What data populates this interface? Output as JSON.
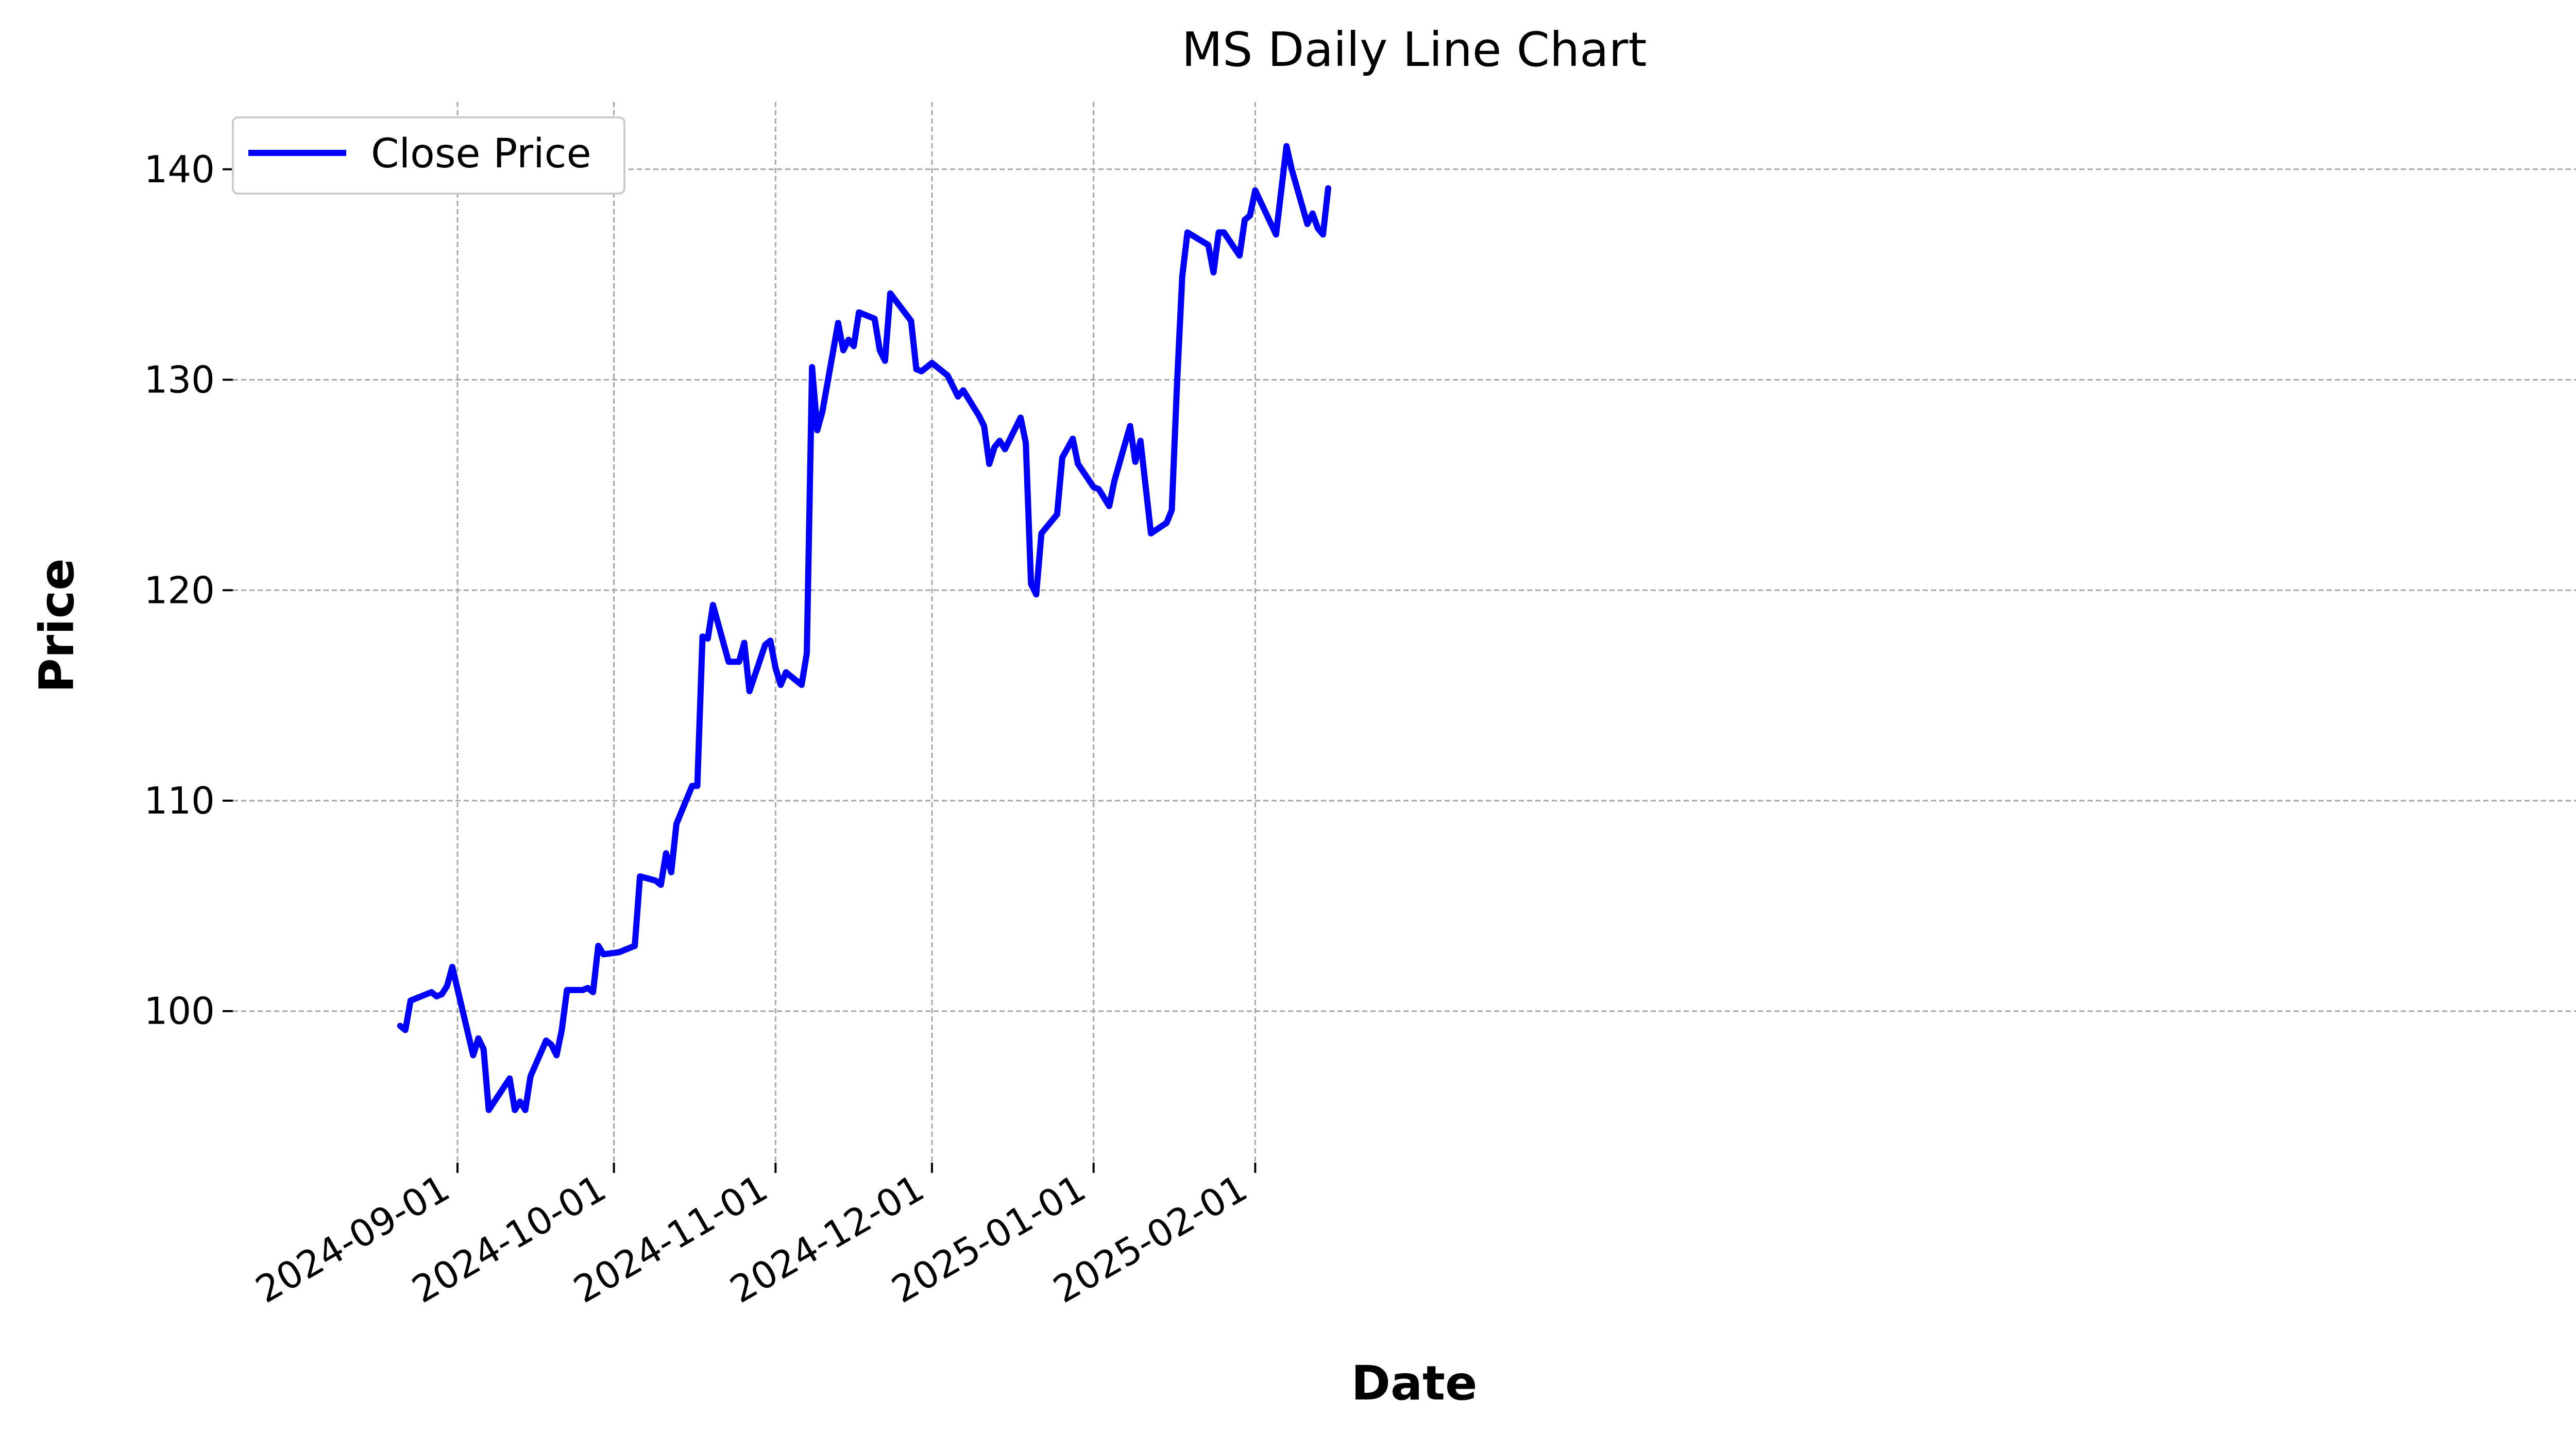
{
  "chart_data": {
    "type": "line",
    "title": "MS Daily Line Chart",
    "xlabel": "Date",
    "ylabel": "Price",
    "x_ticks": [
      "2024-09-01",
      "2024-10-01",
      "2024-11-01",
      "2024-12-01",
      "2025-01-01",
      "2025-02-01"
    ],
    "y_ticks": [
      100,
      110,
      120,
      130,
      140
    ],
    "xlim": [
      "2024-08-22",
      "2025-02-22"
    ],
    "ylim": [
      92.8,
      143.2
    ],
    "grid": true,
    "legend_position": "top-left",
    "series": [
      {
        "name": "Close Price",
        "color": "#0000ff",
        "points": [
          [
            "2024-08-21",
            99.3
          ],
          [
            "2024-08-22",
            99.1
          ],
          [
            "2024-08-23",
            100.5
          ],
          [
            "2024-08-26",
            100.8
          ],
          [
            "2024-08-27",
            100.9
          ],
          [
            "2024-08-28",
            100.7
          ],
          [
            "2024-08-29",
            100.8
          ],
          [
            "2024-08-30",
            101.2
          ],
          [
            "2024-08-31",
            102.1
          ],
          [
            "2024-09-04",
            97.9
          ],
          [
            "2024-09-05",
            98.7
          ],
          [
            "2024-09-06",
            98.2
          ],
          [
            "2024-09-07",
            95.3
          ],
          [
            "2024-09-11",
            96.8
          ],
          [
            "2024-09-12",
            95.3
          ],
          [
            "2024-09-13",
            95.7
          ],
          [
            "2024-09-14",
            95.3
          ],
          [
            "2024-09-15",
            96.9
          ],
          [
            "2024-09-18",
            98.6
          ],
          [
            "2024-09-19",
            98.4
          ],
          [
            "2024-09-20",
            97.9
          ],
          [
            "2024-09-21",
            99.1
          ],
          [
            "2024-09-22",
            101.0
          ],
          [
            "2024-09-25",
            101.0
          ],
          [
            "2024-09-26",
            101.1
          ],
          [
            "2024-09-27",
            100.9
          ],
          [
            "2024-09-28",
            103.1
          ],
          [
            "2024-09-29",
            102.7
          ],
          [
            "2024-10-02",
            102.8
          ],
          [
            "2024-10-03",
            102.9
          ],
          [
            "2024-10-05",
            103.1
          ],
          [
            "2024-10-06",
            106.4
          ],
          [
            "2024-10-09",
            106.2
          ],
          [
            "2024-10-10",
            106.0
          ],
          [
            "2024-10-11",
            107.5
          ],
          [
            "2024-10-12",
            106.6
          ],
          [
            "2024-10-13",
            108.9
          ],
          [
            "2024-10-16",
            110.7
          ],
          [
            "2024-10-17",
            110.7
          ],
          [
            "2024-10-18",
            117.8
          ],
          [
            "2024-10-19",
            117.7
          ],
          [
            "2024-10-20",
            119.3
          ],
          [
            "2024-10-23",
            116.6
          ],
          [
            "2024-10-25",
            116.6
          ],
          [
            "2024-10-26",
            117.5
          ],
          [
            "2024-10-27",
            115.2
          ],
          [
            "2024-10-30",
            117.4
          ],
          [
            "2024-10-31",
            117.6
          ],
          [
            "2024-11-01",
            116.3
          ],
          [
            "2024-11-02",
            115.5
          ],
          [
            "2024-11-03",
            116.1
          ],
          [
            "2024-11-06",
            115.5
          ],
          [
            "2024-11-07",
            117.0
          ],
          [
            "2024-11-08",
            130.6
          ],
          [
            "2024-11-09",
            127.6
          ],
          [
            "2024-11-10",
            128.5
          ],
          [
            "2024-11-13",
            132.7
          ],
          [
            "2024-11-14",
            131.4
          ],
          [
            "2024-11-15",
            131.9
          ],
          [
            "2024-11-16",
            131.6
          ],
          [
            "2024-11-17",
            133.2
          ],
          [
            "2024-11-20",
            132.9
          ],
          [
            "2024-11-21",
            131.4
          ],
          [
            "2024-11-22",
            130.9
          ],
          [
            "2024-11-23",
            134.1
          ],
          [
            "2024-11-27",
            132.8
          ],
          [
            "2024-11-28",
            130.5
          ],
          [
            "2024-11-29",
            130.4
          ],
          [
            "2024-12-01",
            130.8
          ],
          [
            "2024-12-04",
            130.2
          ],
          [
            "2024-12-05",
            129.7
          ],
          [
            "2024-12-06",
            129.2
          ],
          [
            "2024-12-07",
            129.5
          ],
          [
            "2024-12-10",
            128.3
          ],
          [
            "2024-12-11",
            127.8
          ],
          [
            "2024-12-12",
            126.0
          ],
          [
            "2024-12-13",
            126.8
          ],
          [
            "2024-12-14",
            127.1
          ],
          [
            "2024-12-15",
            126.7
          ],
          [
            "2024-12-18",
            128.2
          ],
          [
            "2024-12-19",
            127.0
          ],
          [
            "2024-12-20",
            120.3
          ],
          [
            "2024-12-21",
            119.8
          ],
          [
            "2024-12-22",
            122.7
          ],
          [
            "2024-12-25",
            123.6
          ],
          [
            "2024-12-26",
            126.3
          ],
          [
            "2024-12-28",
            127.2
          ],
          [
            "2024-12-29",
            126.0
          ],
          [
            "2025-01-01",
            124.9
          ],
          [
            "2025-01-02",
            124.8
          ],
          [
            "2025-01-04",
            124.0
          ],
          [
            "2025-01-05",
            125.2
          ],
          [
            "2025-01-08",
            127.8
          ],
          [
            "2025-01-09",
            126.1
          ],
          [
            "2025-01-10",
            127.1
          ],
          [
            "2025-01-12",
            122.7
          ],
          [
            "2025-01-15",
            123.2
          ],
          [
            "2025-01-16",
            123.8
          ],
          [
            "2025-01-17",
            129.8
          ],
          [
            "2025-01-18",
            134.9
          ],
          [
            "2025-01-19",
            137.0
          ],
          [
            "2025-01-23",
            136.4
          ],
          [
            "2025-01-24",
            135.1
          ],
          [
            "2025-01-25",
            137.0
          ],
          [
            "2025-01-26",
            137.0
          ],
          [
            "2025-01-29",
            135.9
          ],
          [
            "2025-01-30",
            137.6
          ],
          [
            "2025-01-31",
            137.8
          ],
          [
            "2025-02-01",
            139.0
          ],
          [
            "2025-02-05",
            136.9
          ],
          [
            "2025-02-07",
            141.1
          ],
          [
            "2025-02-08",
            140.0
          ],
          [
            "2025-02-11",
            137.4
          ],
          [
            "2025-02-12",
            137.9
          ],
          [
            "2025-02-13",
            137.2
          ],
          [
            "2025-02-14",
            136.9
          ],
          [
            "2025-02-15",
            139.1
          ]
        ]
      }
    ]
  }
}
